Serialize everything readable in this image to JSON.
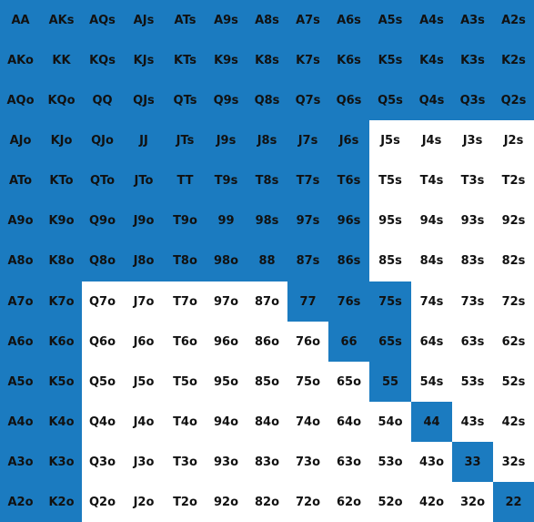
{
  "colors": {
    "selected": "#1b7bc0",
    "unselected": "#ffffff",
    "text": "#111111"
  },
  "grid": {
    "hands": [
      [
        "AA",
        "AKs",
        "AQs",
        "AJs",
        "ATs",
        "A9s",
        "A8s",
        "A7s",
        "A6s",
        "A5s",
        "A4s",
        "A3s",
        "A2s"
      ],
      [
        "AKo",
        "KK",
        "KQs",
        "KJs",
        "KTs",
        "K9s",
        "K8s",
        "K7s",
        "K6s",
        "K5s",
        "K4s",
        "K3s",
        "K2s"
      ],
      [
        "AQo",
        "KQo",
        "QQ",
        "QJs",
        "QTs",
        "Q9s",
        "Q8s",
        "Q7s",
        "Q6s",
        "Q5s",
        "Q4s",
        "Q3s",
        "Q2s"
      ],
      [
        "AJo",
        "KJo",
        "QJo",
        "JJ",
        "JTs",
        "J9s",
        "J8s",
        "J7s",
        "J6s",
        "J5s",
        "J4s",
        "J3s",
        "J2s"
      ],
      [
        "ATo",
        "KTo",
        "QTo",
        "JTo",
        "TT",
        "T9s",
        "T8s",
        "T7s",
        "T6s",
        "T5s",
        "T4s",
        "T3s",
        "T2s"
      ],
      [
        "A9o",
        "K9o",
        "Q9o",
        "J9o",
        "T9o",
        "99",
        "98s",
        "97s",
        "96s",
        "95s",
        "94s",
        "93s",
        "92s"
      ],
      [
        "A8o",
        "K8o",
        "Q8o",
        "J8o",
        "T8o",
        "98o",
        "88",
        "87s",
        "86s",
        "85s",
        "84s",
        "83s",
        "82s"
      ],
      [
        "A7o",
        "K7o",
        "Q7o",
        "J7o",
        "T7o",
        "97o",
        "87o",
        "77",
        "76s",
        "75s",
        "74s",
        "73s",
        "72s"
      ],
      [
        "A6o",
        "K6o",
        "Q6o",
        "J6o",
        "T6o",
        "96o",
        "86o",
        "76o",
        "66",
        "65s",
        "64s",
        "63s",
        "62s"
      ],
      [
        "A5o",
        "K5o",
        "Q5o",
        "J5o",
        "T5o",
        "95o",
        "85o",
        "75o",
        "65o",
        "55",
        "54s",
        "53s",
        "52s"
      ],
      [
        "A4o",
        "K4o",
        "Q4o",
        "J4o",
        "T4o",
        "94o",
        "84o",
        "74o",
        "64o",
        "54o",
        "44",
        "43s",
        "42s"
      ],
      [
        "A3o",
        "K3o",
        "Q3o",
        "J3o",
        "T3o",
        "93o",
        "83o",
        "73o",
        "63o",
        "53o",
        "43o",
        "33",
        "32s"
      ],
      [
        "A2o",
        "K2o",
        "Q2o",
        "J2o",
        "T2o",
        "92o",
        "82o",
        "72o",
        "62o",
        "52o",
        "42o",
        "32o",
        "22"
      ]
    ],
    "selected": [
      [
        1,
        1,
        1,
        1,
        1,
        1,
        1,
        1,
        1,
        1,
        1,
        1,
        1
      ],
      [
        1,
        1,
        1,
        1,
        1,
        1,
        1,
        1,
        1,
        1,
        1,
        1,
        1
      ],
      [
        1,
        1,
        1,
        1,
        1,
        1,
        1,
        1,
        1,
        1,
        1,
        1,
        1
      ],
      [
        1,
        1,
        1,
        1,
        1,
        1,
        1,
        1,
        1,
        0,
        0,
        0,
        0
      ],
      [
        1,
        1,
        1,
        1,
        1,
        1,
        1,
        1,
        1,
        0,
        0,
        0,
        0
      ],
      [
        1,
        1,
        1,
        1,
        1,
        1,
        1,
        1,
        1,
        0,
        0,
        0,
        0
      ],
      [
        1,
        1,
        1,
        1,
        1,
        1,
        1,
        1,
        1,
        0,
        0,
        0,
        0
      ],
      [
        1,
        1,
        0,
        0,
        0,
        0,
        0,
        1,
        1,
        1,
        0,
        0,
        0
      ],
      [
        1,
        1,
        0,
        0,
        0,
        0,
        0,
        0,
        1,
        1,
        0,
        0,
        0
      ],
      [
        1,
        1,
        0,
        0,
        0,
        0,
        0,
        0,
        0,
        1,
        0,
        0,
        0
      ],
      [
        1,
        1,
        0,
        0,
        0,
        0,
        0,
        0,
        0,
        0,
        1,
        0,
        0
      ],
      [
        1,
        1,
        0,
        0,
        0,
        0,
        0,
        0,
        0,
        0,
        0,
        1,
        0
      ],
      [
        1,
        1,
        0,
        0,
        0,
        0,
        0,
        0,
        0,
        0,
        0,
        0,
        1
      ]
    ]
  }
}
